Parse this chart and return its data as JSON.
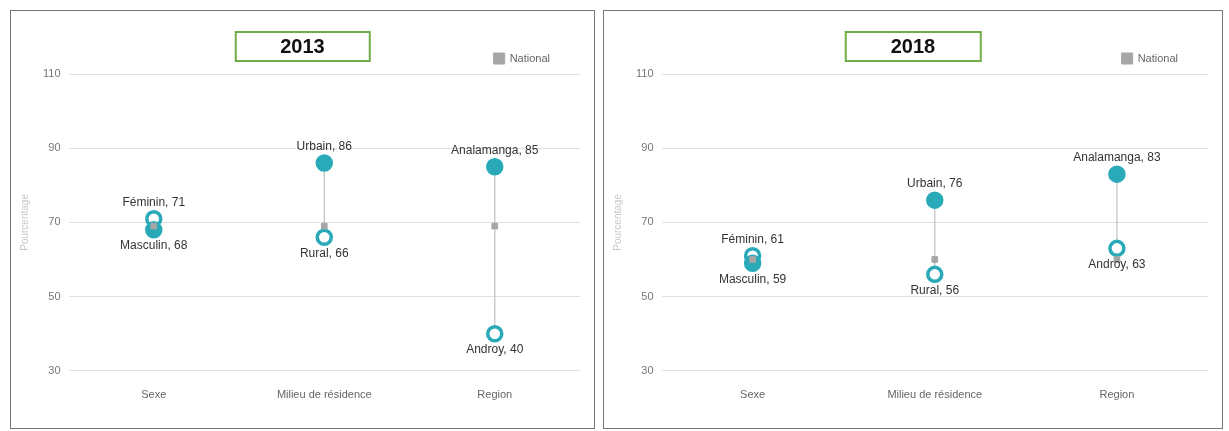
{
  "chart_data": [
    {
      "type": "scatter",
      "title": "2013",
      "ylabel": "Pourcentage",
      "categories": [
        "Sexe",
        "Milieu de résidence",
        "Region"
      ],
      "ylim": [
        30,
        110
      ],
      "yticks": [
        30,
        50,
        70,
        90,
        110
      ],
      "grid": "y",
      "legend": "top right",
      "marker": "circle",
      "series": [
        {
          "color": "#2aaab8",
          "values": [
            68,
            86,
            85
          ],
          "value_labels": [
            "Masculin, 68",
            "Urbain, 86",
            "Analamanga, 85"
          ]
        },
        {
          "color": "#2aaab8",
          "values": [
            71,
            66,
            40
          ],
          "value_labels": [
            "Féminin, 71",
            "Rural, 66",
            "Androy, 40"
          ]
        },
        {
          "name": "National",
          "color": "#a6a6a6",
          "marker": "square",
          "values": [
            69,
            69,
            69
          ]
        }
      ]
    },
    {
      "type": "scatter",
      "title": "2018",
      "ylabel": "Pourcentage",
      "categories": [
        "Sexe",
        "Milieu de résidence",
        "Region"
      ],
      "ylim": [
        30,
        110
      ],
      "yticks": [
        30,
        50,
        70,
        90,
        110
      ],
      "grid": "y",
      "legend": "top right",
      "marker": "circle",
      "series": [
        {
          "color": "#2aaab8",
          "values": [
            59,
            76,
            83
          ],
          "value_labels": [
            "Masculin, 59",
            "Urbain, 76",
            "Analamanga, 83"
          ]
        },
        {
          "color": "#2aaab8",
          "values": [
            61,
            56,
            63
          ],
          "value_labels": [
            "Féminin, 61",
            "Rural, 56",
            "Androy, 63"
          ]
        },
        {
          "name": "National",
          "color": "#a6a6a6",
          "marker": "square",
          "values": [
            60,
            60,
            60
          ]
        }
      ]
    }
  ]
}
